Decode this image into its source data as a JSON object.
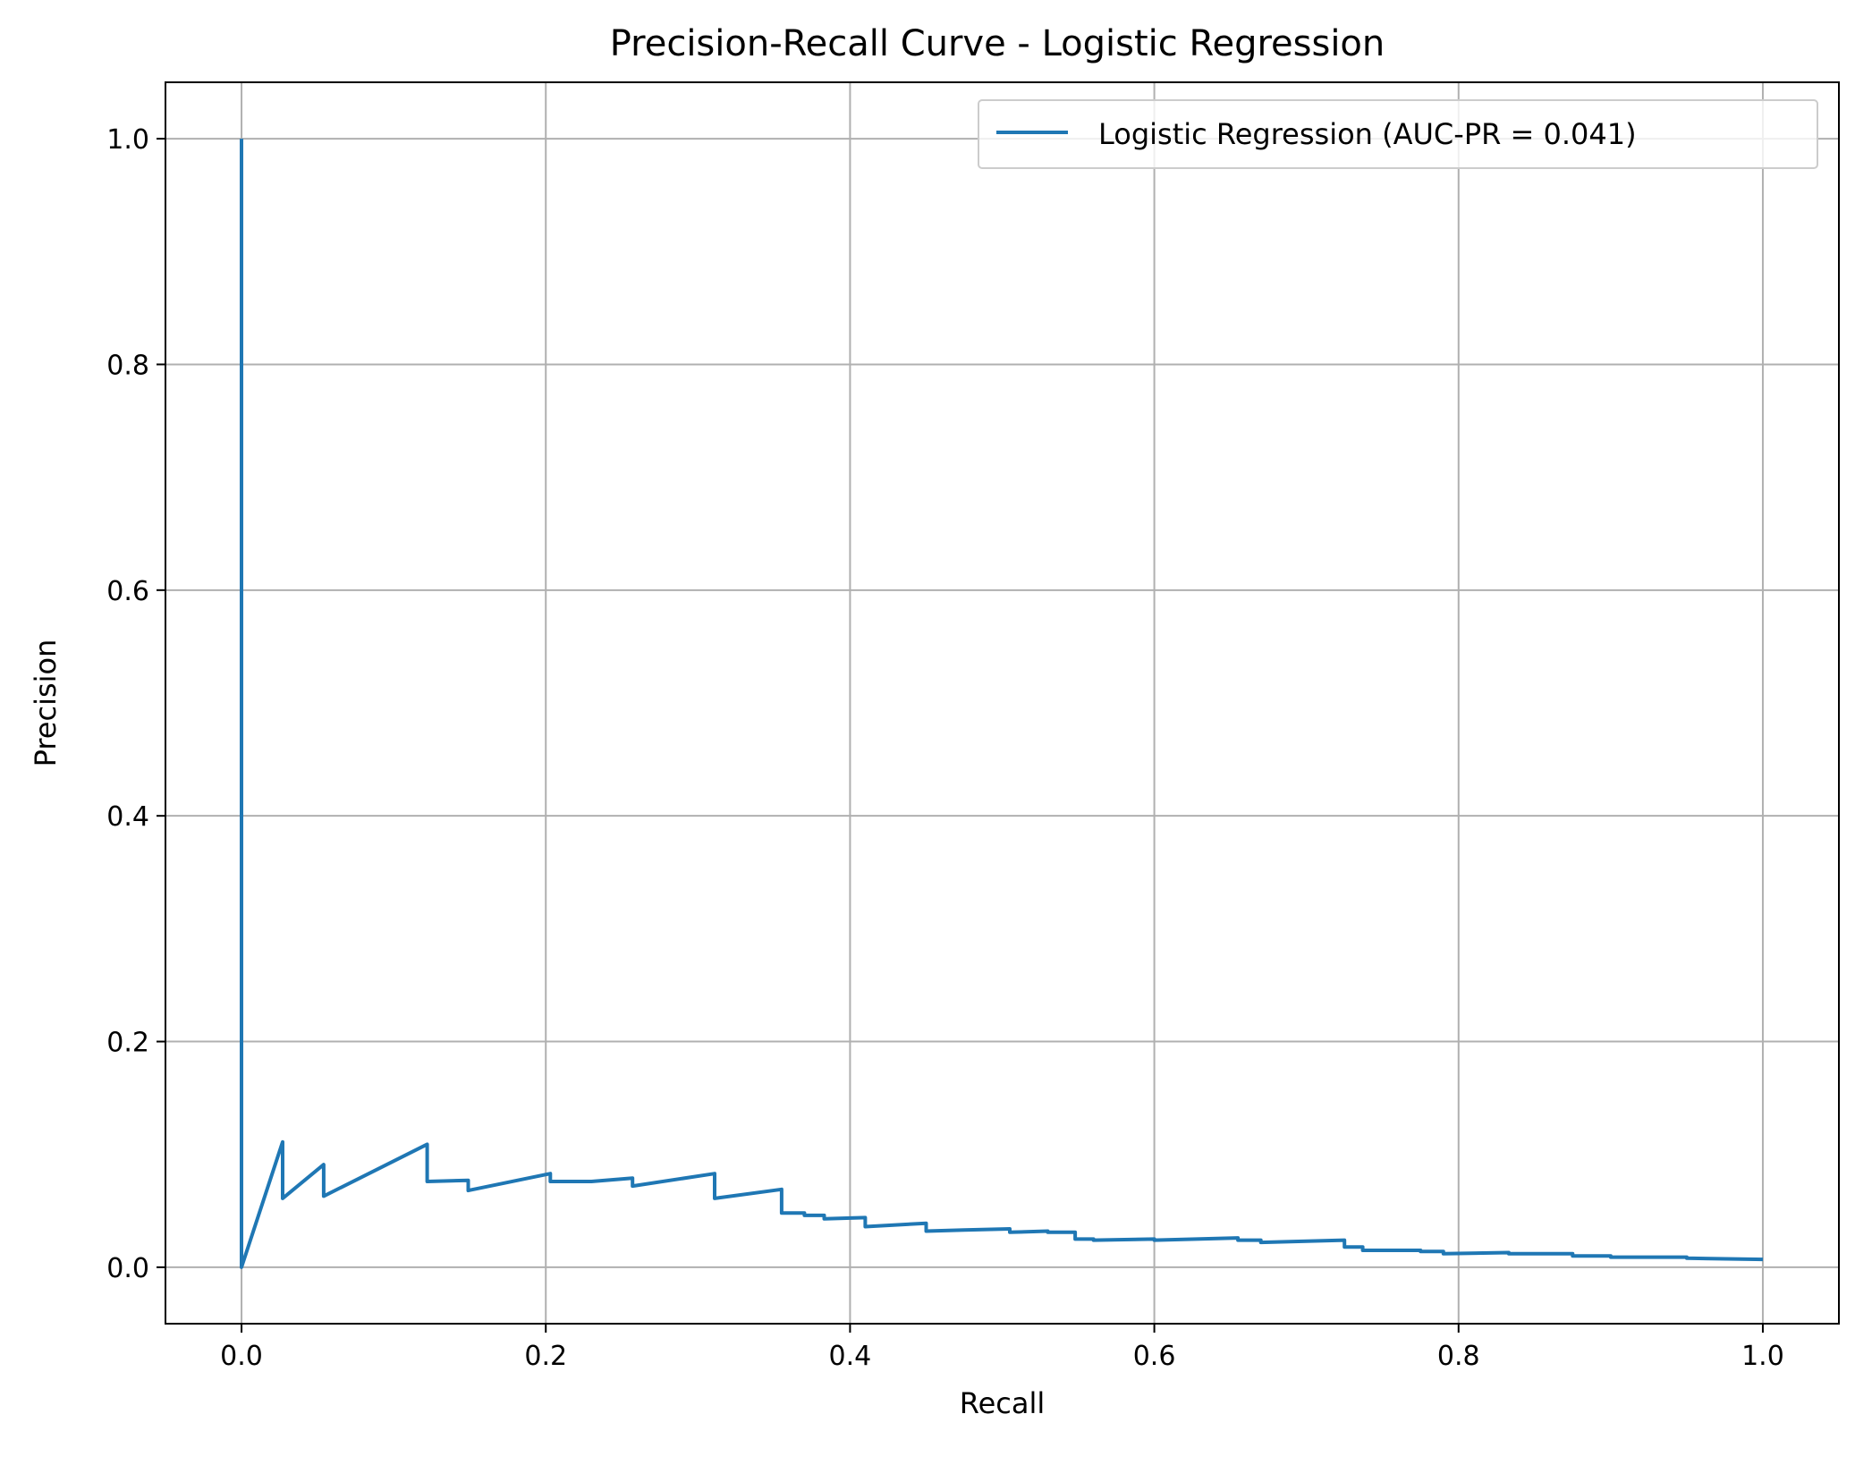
{
  "chart_data": {
    "type": "line",
    "title": "Precision-Recall Curve - Logistic Regression",
    "xlabel": "Recall",
    "ylabel": "Precision",
    "xlim": [
      -0.05,
      1.05
    ],
    "ylim": [
      -0.05,
      1.05
    ],
    "xticks": [
      0.0,
      0.2,
      0.4,
      0.6,
      0.8,
      1.0
    ],
    "xtick_labels": [
      "0.0",
      "0.2",
      "0.4",
      "0.6",
      "0.8",
      "1.0"
    ],
    "yticks": [
      0.0,
      0.2,
      0.4,
      0.6,
      0.8,
      1.0
    ],
    "ytick_labels": [
      "0.0",
      "0.2",
      "0.4",
      "0.6",
      "0.8",
      "1.0"
    ],
    "grid": true,
    "legend_position": "upper right",
    "series": [
      {
        "name": "Logistic Regression (AUC-PR = 0.041)",
        "color": "#1f77b4",
        "x": [
          0.0,
          0.0,
          0.027,
          0.027,
          0.054,
          0.054,
          0.122,
          0.122,
          0.149,
          0.149,
          0.203,
          0.203,
          0.23,
          0.257,
          0.257,
          0.311,
          0.311,
          0.355,
          0.355,
          0.37,
          0.37,
          0.383,
          0.383,
          0.41,
          0.41,
          0.45,
          0.45,
          0.475,
          0.475,
          0.505,
          0.505,
          0.53,
          0.53,
          0.548,
          0.548,
          0.56,
          0.56,
          0.6,
          0.6,
          0.655,
          0.655,
          0.67,
          0.67,
          0.725,
          0.725,
          0.737,
          0.737,
          0.775,
          0.775,
          0.79,
          0.79,
          0.833,
          0.833,
          0.875,
          0.875,
          0.9,
          0.9,
          0.95,
          0.95,
          1.0
        ],
        "y": [
          1.0,
          0.0,
          0.111,
          0.061,
          0.091,
          0.063,
          0.109,
          0.076,
          0.077,
          0.068,
          0.083,
          0.076,
          0.076,
          0.079,
          0.072,
          0.083,
          0.061,
          0.069,
          0.048,
          0.048,
          0.046,
          0.046,
          0.043,
          0.044,
          0.036,
          0.039,
          0.032,
          0.033,
          0.033,
          0.034,
          0.031,
          0.032,
          0.031,
          0.031,
          0.025,
          0.025,
          0.024,
          0.025,
          0.024,
          0.026,
          0.024,
          0.024,
          0.022,
          0.024,
          0.018,
          0.018,
          0.015,
          0.015,
          0.014,
          0.014,
          0.012,
          0.013,
          0.012,
          0.012,
          0.01,
          0.01,
          0.009,
          0.009,
          0.008,
          0.007
        ]
      }
    ]
  }
}
